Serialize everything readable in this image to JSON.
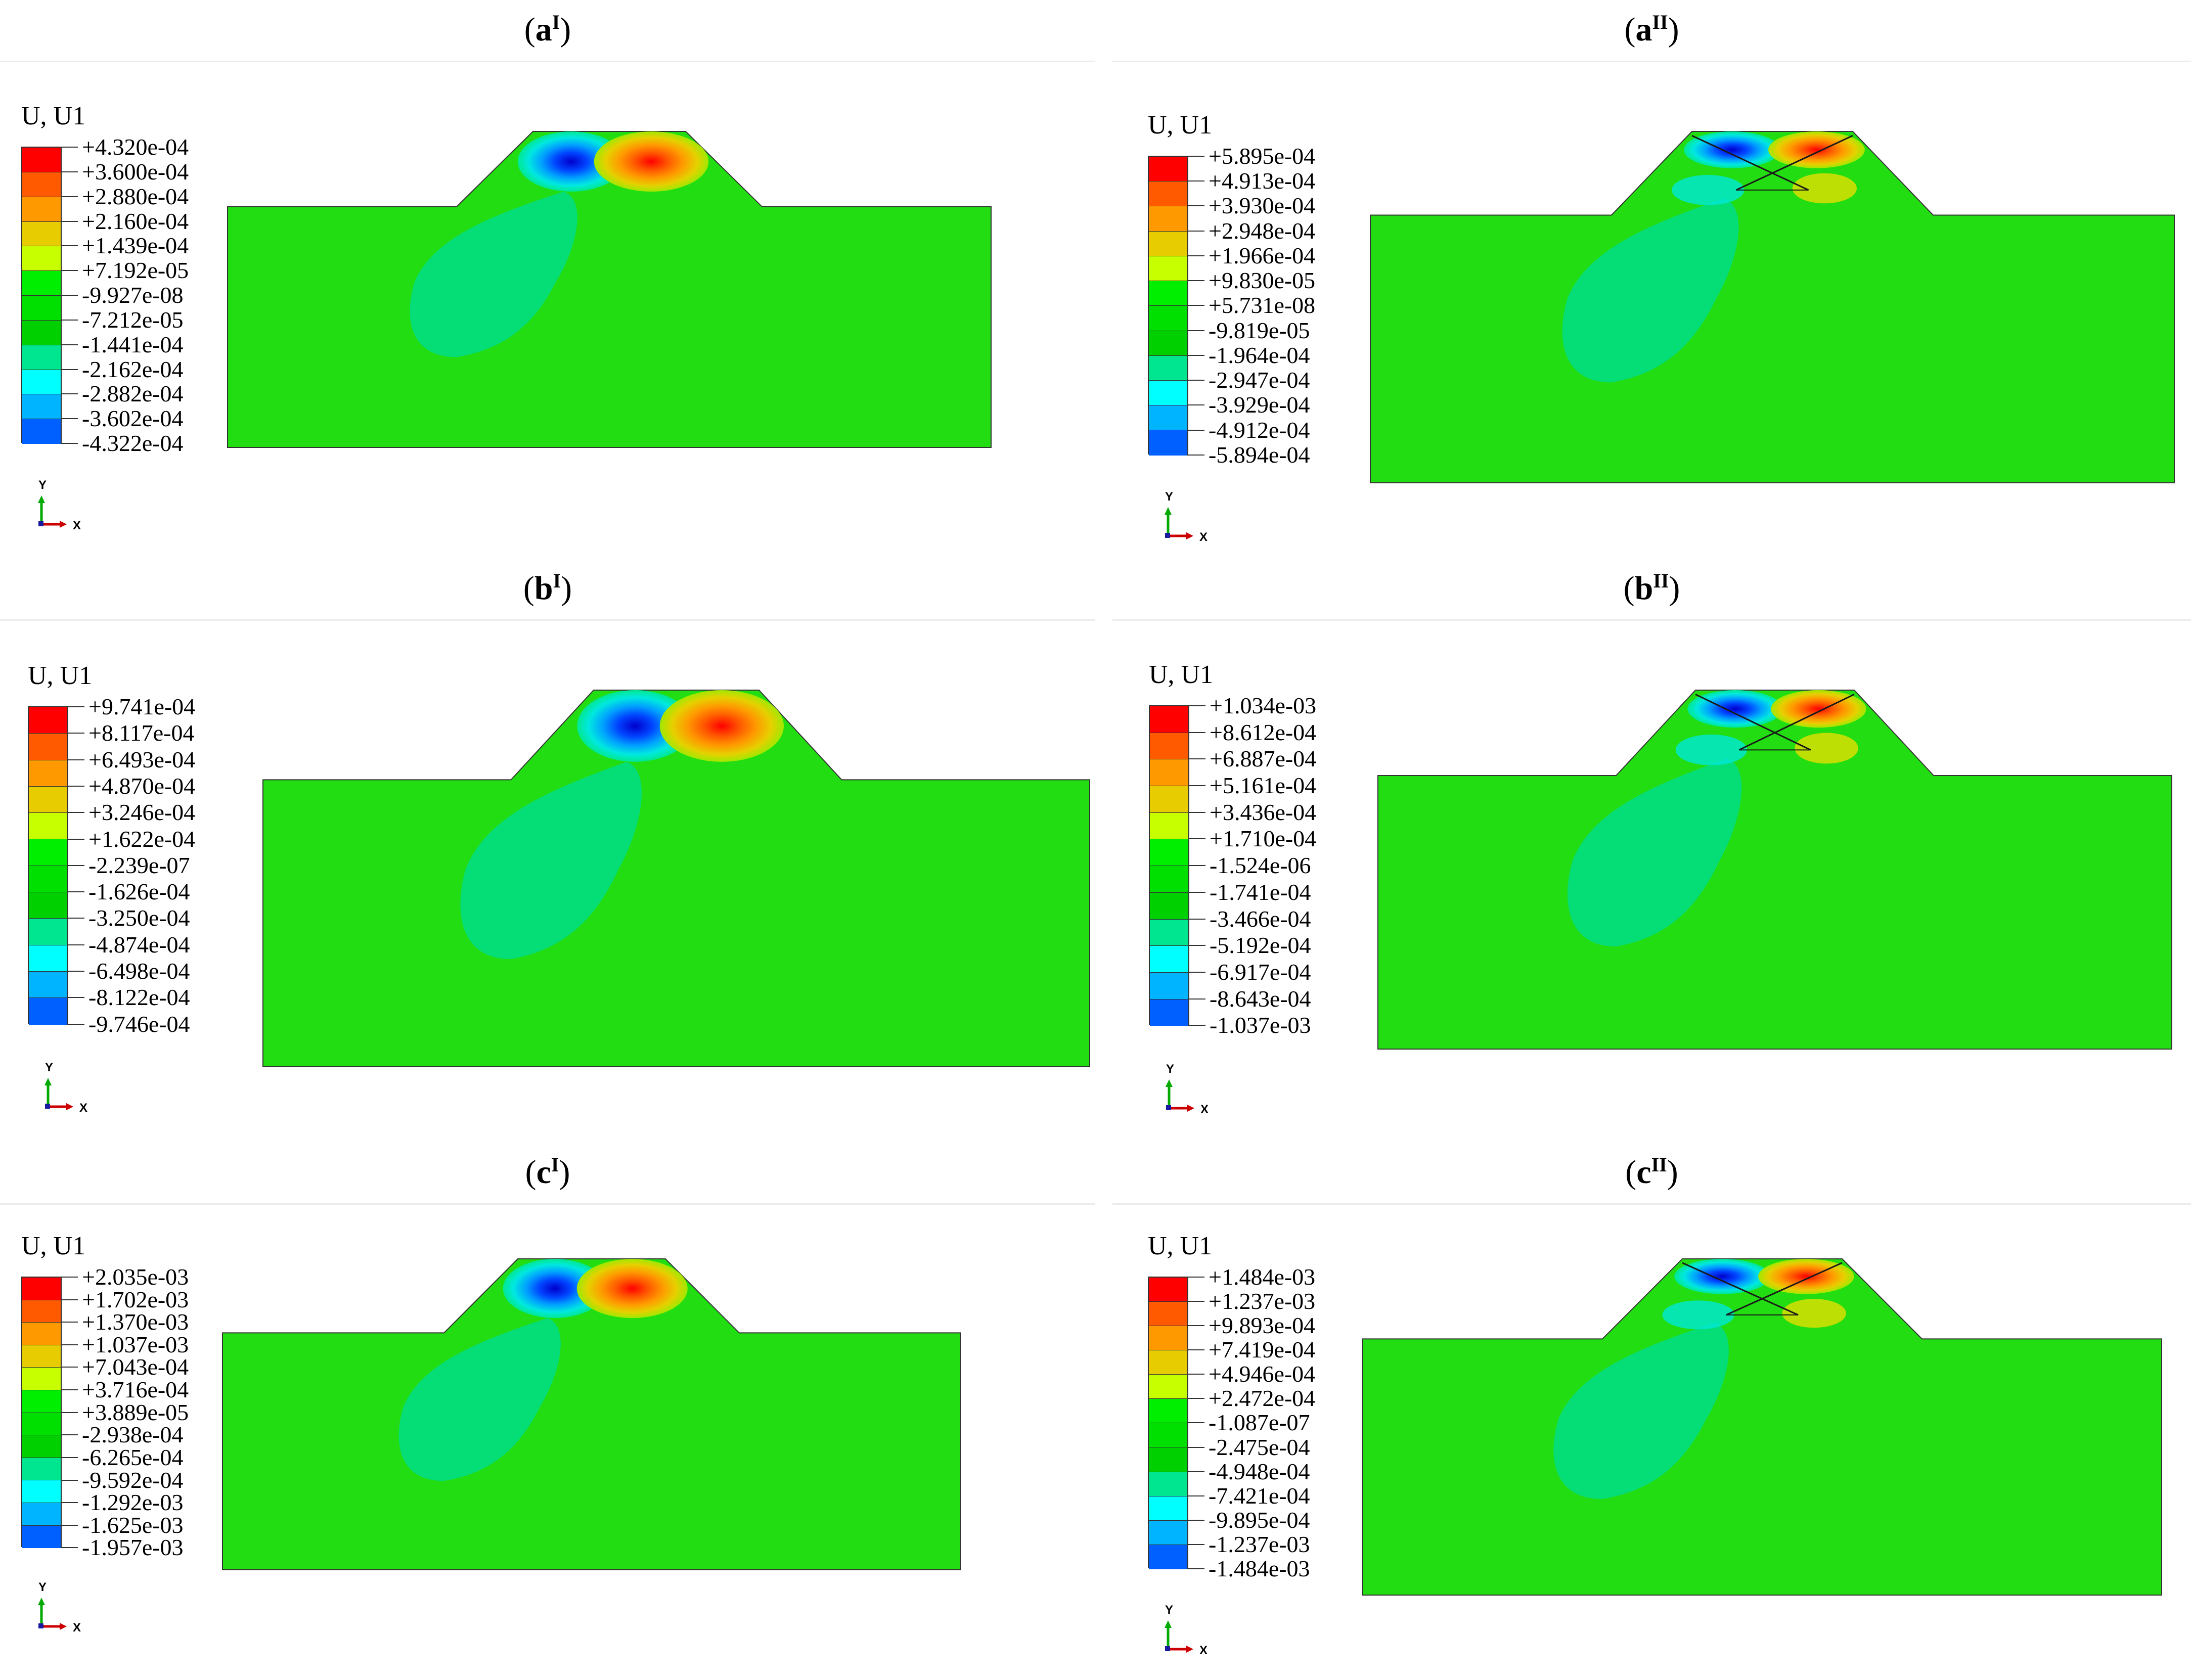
{
  "variable_label": "U, U1",
  "legend_colors": [
    "#ff0000",
    "#ff5a00",
    "#ff9900",
    "#e6cc00",
    "#c8ff00",
    "#00ee00",
    "#00e000",
    "#00d000",
    "#00e690",
    "#00ffff",
    "#00b4ff",
    "#0060ff",
    "#0000ff"
  ],
  "triad": {
    "y_label": "Y",
    "x_label": "X"
  },
  "panels": [
    {
      "letter": "a",
      "superscript": "I",
      "variant": "single",
      "legend": [
        "+4.320e-04",
        "+3.600e-04",
        "+2.880e-04",
        "+2.160e-04",
        "+1.439e-04",
        "+7.192e-05",
        "-9.927e-08",
        "-7.212e-05",
        "-1.441e-04",
        "-2.162e-04",
        "-2.882e-04",
        "-3.602e-04",
        "-4.322e-04"
      ]
    },
    {
      "letter": "a",
      "superscript": "II",
      "variant": "crossed",
      "legend": [
        "+5.895e-04",
        "+4.913e-04",
        "+3.930e-04",
        "+2.948e-04",
        "+1.966e-04",
        "+9.830e-05",
        "+5.731e-08",
        "-9.819e-05",
        "-1.964e-04",
        "-2.947e-04",
        "-3.929e-04",
        "-4.912e-04",
        "-5.894e-04"
      ]
    },
    {
      "letter": "b",
      "superscript": "I",
      "variant": "single",
      "legend": [
        "+9.741e-04",
        "+8.117e-04",
        "+6.493e-04",
        "+4.870e-04",
        "+3.246e-04",
        "+1.622e-04",
        "-2.239e-07",
        "-1.626e-04",
        "-3.250e-04",
        "-4.874e-04",
        "-6.498e-04",
        "-8.122e-04",
        "-9.746e-04"
      ]
    },
    {
      "letter": "b",
      "superscript": "II",
      "variant": "crossed",
      "legend": [
        "+1.034e-03",
        "+8.612e-04",
        "+6.887e-04",
        "+5.161e-04",
        "+3.436e-04",
        "+1.710e-04",
        "-1.524e-06",
        "-1.741e-04",
        "-3.466e-04",
        "-5.192e-04",
        "-6.917e-04",
        "-8.643e-04",
        "-1.037e-03"
      ]
    },
    {
      "letter": "c",
      "superscript": "I",
      "variant": "single",
      "legend": [
        "+2.035e-03",
        "+1.702e-03",
        "+1.370e-03",
        "+1.037e-03",
        "+7.043e-04",
        "+3.716e-04",
        "+3.889e-05",
        "-2.938e-04",
        "-6.265e-04",
        "-9.592e-04",
        "-1.292e-03",
        "-1.625e-03",
        "-1.957e-03"
      ]
    },
    {
      "letter": "c",
      "superscript": "II",
      "variant": "crossed",
      "legend": [
        "+1.484e-03",
        "+1.237e-03",
        "+9.893e-04",
        "+7.419e-04",
        "+4.946e-04",
        "+2.472e-04",
        "-1.087e-07",
        "-2.475e-04",
        "-4.948e-04",
        "-7.421e-04",
        "-9.895e-04",
        "-1.237e-03",
        "-1.484e-03"
      ]
    }
  ]
}
